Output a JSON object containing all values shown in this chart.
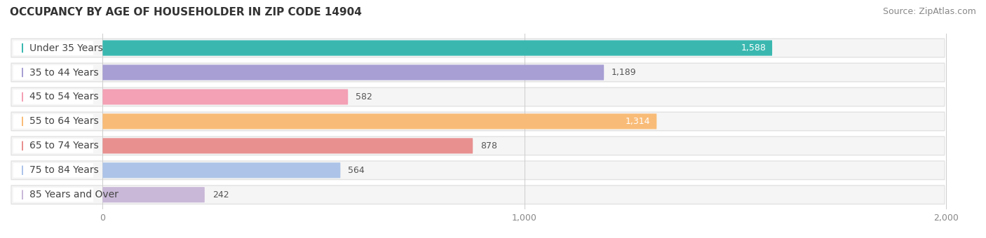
{
  "title": "OCCUPANCY BY AGE OF HOUSEHOLDER IN ZIP CODE 14904",
  "source": "Source: ZipAtlas.com",
  "categories": [
    "Under 35 Years",
    "35 to 44 Years",
    "45 to 54 Years",
    "55 to 64 Years",
    "65 to 74 Years",
    "75 to 84 Years",
    "85 Years and Over"
  ],
  "values": [
    1588,
    1189,
    582,
    1314,
    878,
    564,
    242
  ],
  "bar_colors": [
    "#3ab8b0",
    "#a89fd4",
    "#f4a0b5",
    "#f9bc78",
    "#e89090",
    "#adc4e8",
    "#c9b8d8"
  ],
  "xlim_min": 0,
  "xlim_max": 2000,
  "xticks": [
    0,
    1000,
    2000
  ],
  "xtick_labels": [
    "0",
    "1,000",
    "2,000"
  ],
  "title_fontsize": 11,
  "source_fontsize": 9,
  "label_fontsize": 10,
  "value_fontsize": 9,
  "background_color": "#ffffff",
  "row_bg_color": "#efefef",
  "row_bg_inner": "#f8f8f8",
  "inside_label_threshold": 1200
}
